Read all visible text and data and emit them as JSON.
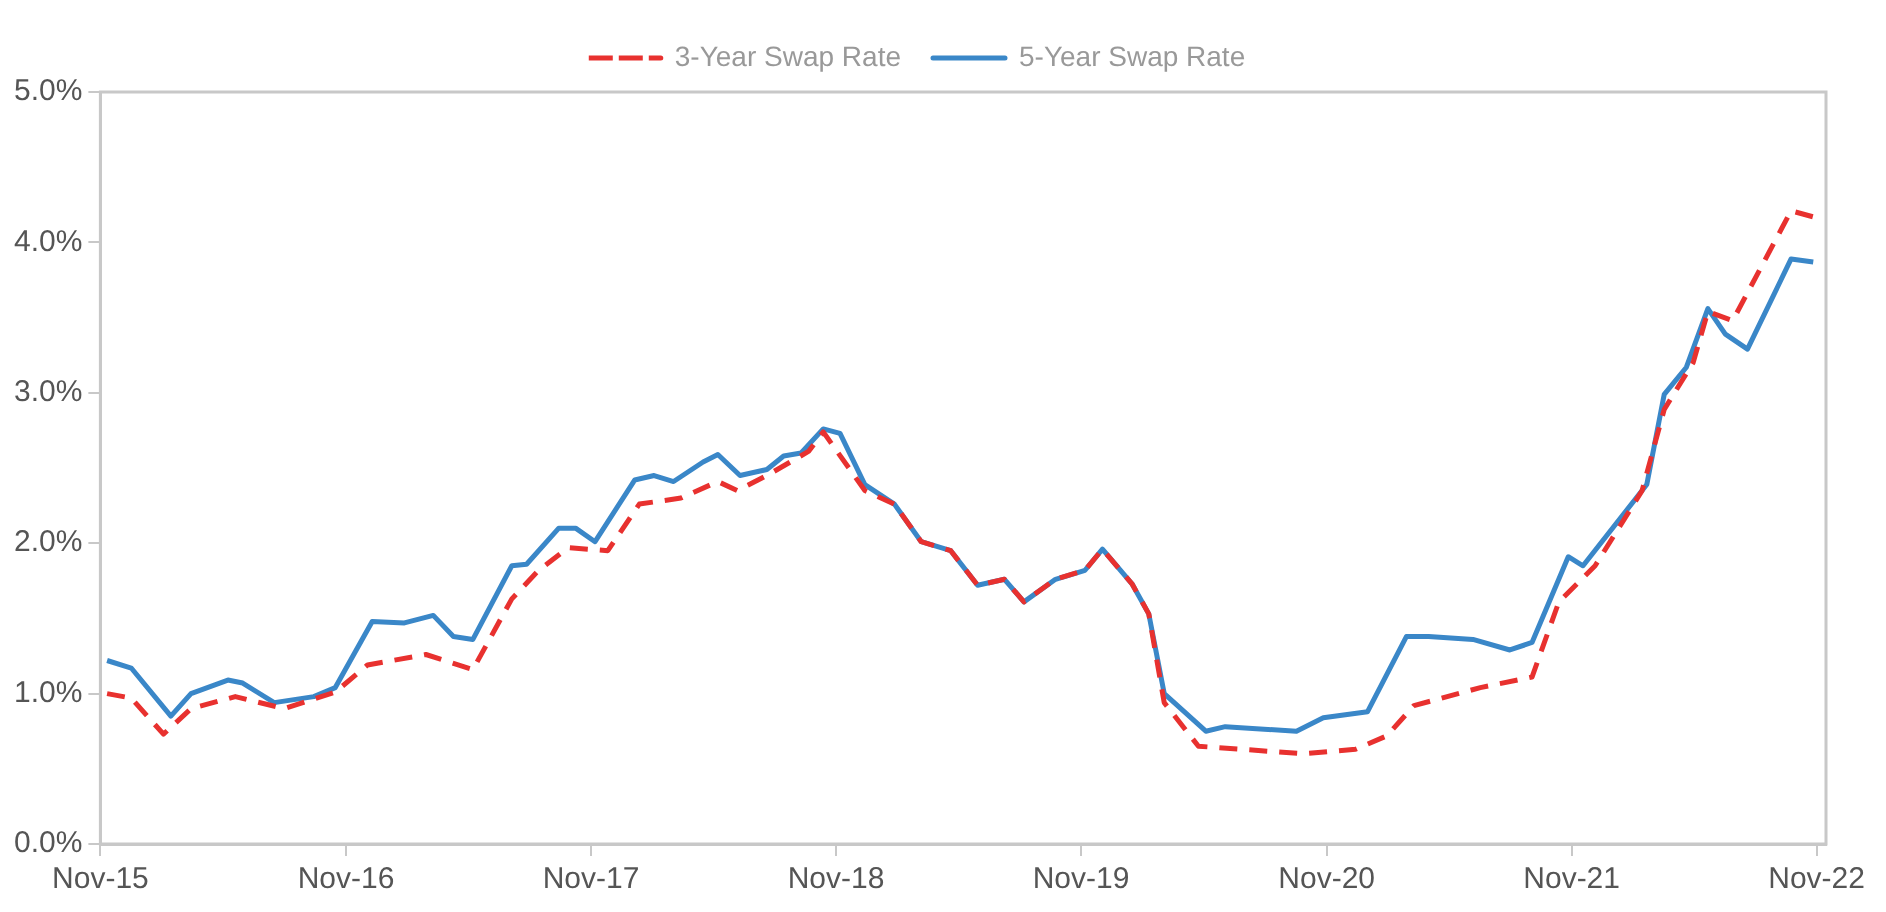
{
  "chart_data": {
    "type": "line",
    "legend": "top",
    "grid": false,
    "marker": "none",
    "xlim": [
      "2015-11-01",
      "2022-11-15"
    ],
    "xticks": [
      {
        "value": "2015-11",
        "label": "Nov-15"
      },
      {
        "value": "2016-11",
        "label": "Nov-16"
      },
      {
        "value": "2017-11",
        "label": "Nov-17"
      },
      {
        "value": "2018-11",
        "label": "Nov-18"
      },
      {
        "value": "2019-11",
        "label": "Nov-19"
      },
      {
        "value": "2020-11",
        "label": "Nov-20"
      },
      {
        "value": "2021-11",
        "label": "Nov-21"
      },
      {
        "value": "2022-11",
        "label": "Nov-22"
      }
    ],
    "ylim": [
      0,
      5
    ],
    "yticks": [
      {
        "value": 0,
        "label": "0.0%"
      },
      {
        "value": 1,
        "label": "1.0%"
      },
      {
        "value": 2,
        "label": "2.0%"
      },
      {
        "value": 3,
        "label": "3.0%"
      },
      {
        "value": 4,
        "label": "4.0%"
      },
      {
        "value": 5,
        "label": "5.0%"
      }
    ],
    "series": [
      {
        "name": "3-Year Swap Rate",
        "color": "#e8312f",
        "line_style": "dashed",
        "x": [
          "2015-11-11",
          "2015-12-17",
          "2016-02-03",
          "2016-03-15",
          "2016-05-20",
          "2016-08-01",
          "2016-10-16",
          "2016-12-03",
          "2017-02-28",
          "2017-05-09",
          "2017-07-06",
          "2017-08-15",
          "2017-09-28",
          "2017-11-26",
          "2018-01-12",
          "2018-03-15",
          "2018-05-09",
          "2018-06-07",
          "2018-07-21",
          "2018-09-21",
          "2018-10-13",
          "2018-12-14",
          "2019-01-27",
          "2019-03-08",
          "2019-04-21",
          "2019-05-31",
          "2019-07-10",
          "2019-08-08",
          "2019-09-24",
          "2019-11-07",
          "2019-12-03",
          "2020-01-16",
          "2020-02-10",
          "2020-03-04",
          "2020-04-24",
          "2020-09-28",
          "2020-12-14",
          "2021-01-30",
          "2021-03-11",
          "2021-06-18",
          "2021-09-03",
          "2021-10-13",
          "2021-12-06",
          "2022-02-14",
          "2022-03-19",
          "2022-05-01",
          "2022-05-23",
          "2022-06-29",
          "2022-09-24",
          "2022-10-27"
        ],
        "values": [
          1.0,
          0.97,
          0.73,
          0.9,
          0.98,
          0.9,
          1.01,
          1.19,
          1.26,
          1.16,
          1.63,
          1.82,
          1.97,
          1.95,
          2.26,
          2.3,
          2.41,
          2.35,
          2.45,
          2.61,
          2.74,
          2.35,
          2.26,
          2.01,
          1.95,
          1.72,
          1.76,
          1.61,
          1.76,
          1.82,
          1.96,
          1.73,
          1.53,
          0.94,
          0.65,
          0.6,
          0.63,
          0.72,
          0.92,
          1.04,
          1.11,
          1.61,
          1.85,
          2.35,
          2.89,
          3.2,
          3.54,
          3.48,
          4.21,
          4.17
        ]
      },
      {
        "name": "5-Year Swap Rate",
        "color": "#3a87c8",
        "line_style": "solid",
        "x": [
          "2015-11-11",
          "2015-12-17",
          "2016-02-14",
          "2016-03-15",
          "2016-05-09",
          "2016-05-31",
          "2016-07-17",
          "2016-09-14",
          "2016-10-16",
          "2016-12-10",
          "2017-01-27",
          "2017-03-11",
          "2017-04-10",
          "2017-05-09",
          "2017-07-06",
          "2017-07-28",
          "2017-09-14",
          "2017-10-09",
          "2017-11-07",
          "2018-01-05",
          "2018-02-03",
          "2018-03-04",
          "2018-04-17",
          "2018-05-09",
          "2018-06-11",
          "2018-07-21",
          "2018-08-15",
          "2018-09-10",
          "2018-10-13",
          "2018-11-07",
          "2018-12-14",
          "2019-01-27",
          "2019-03-08",
          "2019-04-21",
          "2019-05-31",
          "2019-07-10",
          "2019-08-08",
          "2019-09-24",
          "2019-11-07",
          "2019-12-03",
          "2020-01-16",
          "2020-02-10",
          "2020-03-04",
          "2020-05-05",
          "2020-06-03",
          "2020-09-17",
          "2020-10-27",
          "2021-01-01",
          "2021-02-28",
          "2021-04-02",
          "2021-06-07",
          "2021-08-01",
          "2021-09-03",
          "2021-10-27",
          "2021-11-18",
          "2022-02-21",
          "2022-03-19",
          "2022-04-21",
          "2022-05-23",
          "2022-06-18",
          "2022-07-21",
          "2022-09-24",
          "2022-10-27"
        ],
        "values": [
          1.22,
          1.17,
          0.85,
          1.0,
          1.09,
          1.07,
          0.94,
          0.98,
          1.04,
          1.48,
          1.47,
          1.52,
          1.38,
          1.36,
          1.85,
          1.86,
          2.1,
          2.1,
          2.01,
          2.42,
          2.45,
          2.41,
          2.54,
          2.59,
          2.45,
          2.49,
          2.58,
          2.6,
          2.76,
          2.73,
          2.39,
          2.26,
          2.01,
          1.95,
          1.72,
          1.76,
          1.61,
          1.76,
          1.82,
          1.96,
          1.73,
          1.53,
          1.0,
          0.75,
          0.78,
          0.75,
          0.84,
          0.88,
          1.38,
          1.38,
          1.36,
          1.29,
          1.34,
          1.91,
          1.85,
          2.39,
          2.99,
          3.17,
          3.56,
          3.39,
          3.29,
          3.89,
          3.87
        ]
      }
    ]
  }
}
